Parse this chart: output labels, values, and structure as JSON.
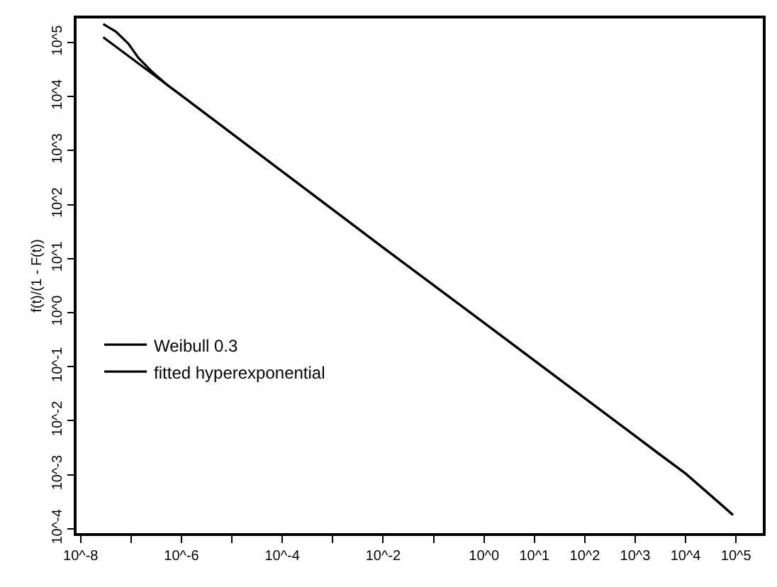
{
  "chart_data": {
    "type": "line",
    "ylabel": "f(t)/(1 - F(t))",
    "log": "xy",
    "legend": "left",
    "marker": "none",
    "line_style": "solid",
    "xlim": [
      8.3e-09,
      340000.0
    ],
    "ylim": [
      8.3e-05,
      280000.0
    ],
    "xticks": [
      {
        "value": 1e-08,
        "label": "10^-8"
      },
      {
        "value": 1e-07,
        "label": null
      },
      {
        "value": 1e-06,
        "label": "10^-6"
      },
      {
        "value": 1e-05,
        "label": null
      },
      {
        "value": 0.0001,
        "label": "10^-4"
      },
      {
        "value": 0.001,
        "label": null
      },
      {
        "value": 0.01,
        "label": "10^-2"
      },
      {
        "value": 0.1,
        "label": null
      },
      {
        "value": 1,
        "label": "10^0"
      },
      {
        "value": 10,
        "label": "10^1"
      },
      {
        "value": 100,
        "label": "10^2"
      },
      {
        "value": 1000,
        "label": "10^3"
      },
      {
        "value": 10000,
        "label": "10^4"
      },
      {
        "value": 100000,
        "label": "10^5"
      }
    ],
    "yticks": [
      {
        "value": 0.0001,
        "label": "10^-4"
      },
      {
        "value": 0.001,
        "label": "10^-3"
      },
      {
        "value": 0.01,
        "label": "10^-2"
      },
      {
        "value": 0.1,
        "label": "10^-1"
      },
      {
        "value": 1,
        "label": "10^0"
      },
      {
        "value": 10,
        "label": "10^1"
      },
      {
        "value": 100,
        "label": "10^2"
      },
      {
        "value": 1000,
        "label": "10^3"
      },
      {
        "value": 10000,
        "label": "10^4"
      },
      {
        "value": 100000,
        "label": "10^5"
      }
    ],
    "series": [
      {
        "name": "Weibull 0.3",
        "color": "#000000",
        "x": [
          2.8e-08,
          1e-06,
          0.0001,
          0.01,
          1,
          100,
          10000,
          87000.0
        ],
        "values": [
          126000.0,
          10500.0,
          410,
          16,
          0.65,
          0.026,
          0.00105,
          0.00018
        ]
      },
      {
        "name": "fitted hyperexponential",
        "color": "#000000",
        "x": [
          2.8e-08,
          5e-08,
          8.9e-08,
          1.4e-07,
          2.5e-07,
          5e-07,
          1e-06,
          0.0001,
          0.01,
          1,
          100,
          1000,
          3000,
          10000,
          87000.0
        ],
        "values": [
          220000.0,
          160000.0,
          95000.0,
          52000.0,
          30000.0,
          17000.0,
          10500.0,
          410,
          16,
          0.65,
          0.026,
          0.0052,
          0.0024,
          0.00105,
          0.00018
        ]
      }
    ]
  }
}
